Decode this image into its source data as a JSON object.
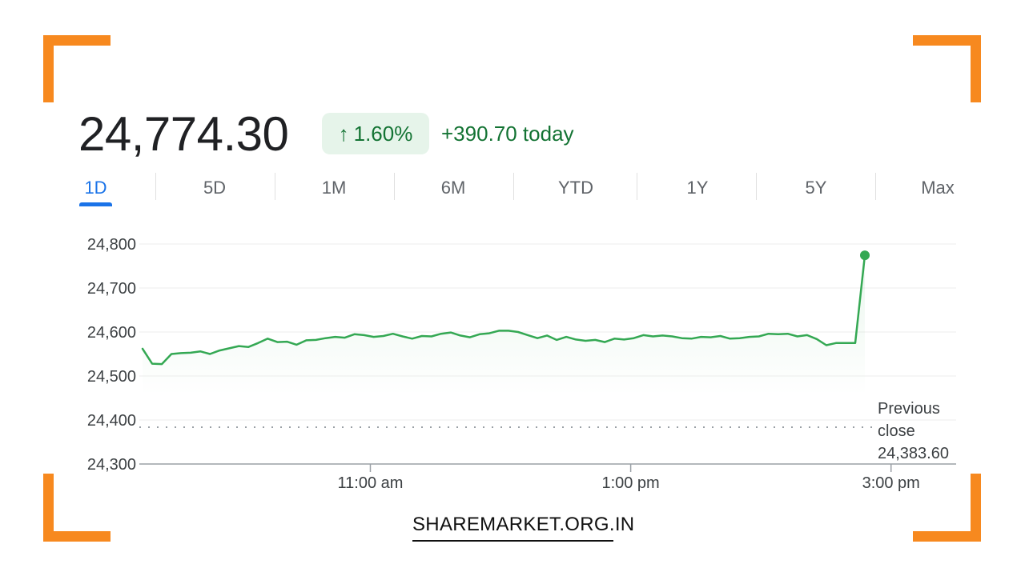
{
  "header": {
    "price": "24,774.30",
    "change_pct": "1.60%",
    "change_arrow": "↑",
    "change_today": "+390.70 today"
  },
  "tabs": [
    {
      "label": "1D",
      "active": true
    },
    {
      "label": "5D"
    },
    {
      "label": "1M"
    },
    {
      "label": "6M"
    },
    {
      "label": "YTD"
    },
    {
      "label": "1Y"
    },
    {
      "label": "5Y"
    },
    {
      "label": "Max"
    }
  ],
  "chart_data": {
    "type": "line",
    "title": "",
    "xlabel": "",
    "ylabel": "",
    "ylim": [
      24300,
      24800
    ],
    "y_ticks": [
      "24,800",
      "24,700",
      "24,600",
      "24,500",
      "24,400",
      "24,300"
    ],
    "y_tick_values": [
      24800,
      24700,
      24600,
      24500,
      24400,
      24300
    ],
    "x_range_hours": [
      9.25,
      15.5
    ],
    "x_ticks": [
      {
        "label": "11:00 am",
        "hour": 11
      },
      {
        "label": "1:00 pm",
        "hour": 13
      },
      {
        "label": "3:00 pm",
        "hour": 15
      }
    ],
    "grid": true,
    "line_color": "#34a853",
    "previous_close": {
      "value": 24383.6,
      "label_lines": [
        "Previous",
        "close",
        "24,383.60"
      ]
    },
    "series": [
      {
        "values": [
          24562,
          24528,
          24527,
          24550,
          24552,
          24553,
          24556,
          24550,
          24558,
          24563,
          24568,
          24566,
          24575,
          24585,
          24577,
          24578,
          24571,
          24581,
          24582,
          24586,
          24589,
          24587,
          24595,
          24593,
          24589,
          24591,
          24596,
          24590,
          24585,
          24591,
          24590,
          24596,
          24599,
          24592,
          24588,
          24595,
          24597,
          24603,
          24603,
          24600,
          24593,
          24586,
          24592,
          24582,
          24589,
          24583,
          24580,
          24582,
          24577,
          24585,
          24583,
          24586,
          24593,
          24590,
          24592,
          24590,
          24586,
          24585,
          24589,
          24588,
          24591,
          24585,
          24586,
          24589,
          24590,
          24596,
          24595,
          24596,
          24590,
          24593,
          24584,
          24570,
          24575,
          24575,
          24575,
          24774.3
        ]
      }
    ]
  },
  "footer": {
    "brand": "SHAREMARKET.ORG.IN"
  }
}
